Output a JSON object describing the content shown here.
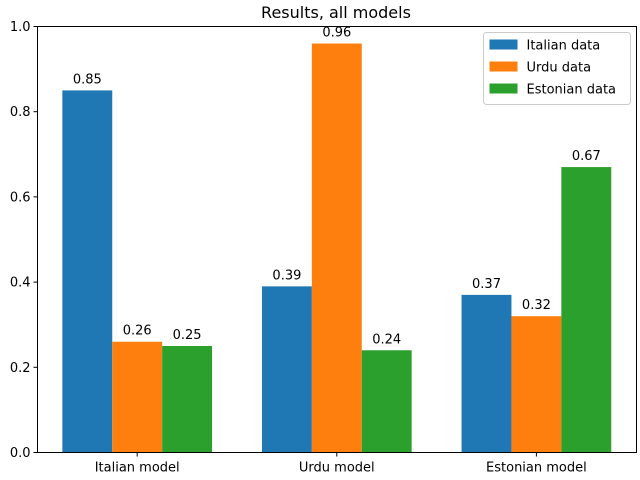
{
  "chart_data": {
    "type": "bar",
    "title": "Results, all models",
    "xlabel": "",
    "ylabel": "",
    "categories": [
      "Italian model",
      "Urdu model",
      "Estonian model"
    ],
    "series": [
      {
        "name": "Italian data",
        "color": "#1f77b4",
        "values": [
          0.85,
          0.39,
          0.37
        ]
      },
      {
        "name": "Urdu data",
        "color": "#ff7f0e",
        "values": [
          0.26,
          0.96,
          0.32
        ]
      },
      {
        "name": "Estonian data",
        "color": "#2ca02c",
        "values": [
          0.25,
          0.24,
          0.67
        ]
      }
    ],
    "ylim": [
      0,
      1.0
    ],
    "yticks": [
      "0.0",
      "0.2",
      "0.4",
      "0.6",
      "0.8",
      "1.0"
    ],
    "grid": false,
    "legend": "top-right"
  }
}
